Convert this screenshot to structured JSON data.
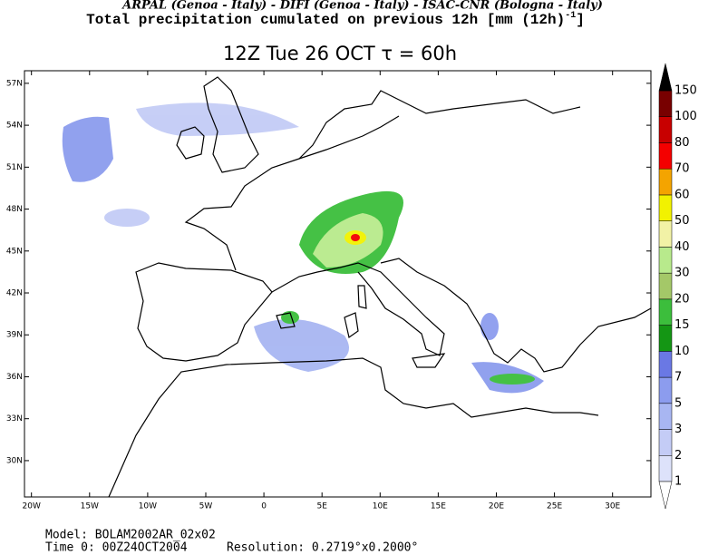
{
  "header": {
    "institutions": "ARPAL (Genoa - Italy)  -  DIFI (Genoa - Italy)  -  ISAC-CNR (Bologna - Italy)",
    "field": "Total precipitation cumulated on previous 12h [mm (12h)",
    "field_exponent": "-1",
    "field_end": "]"
  },
  "title": "12Z Tue 26 OCT  τ = 60h",
  "map": {
    "xlim": [
      -20.6,
      33.3
    ],
    "ylim": [
      27.4,
      57.9
    ],
    "xticks": [
      {
        "value": -20,
        "label": "20W"
      },
      {
        "value": -15,
        "label": "15W"
      },
      {
        "value": -10,
        "label": "10W"
      },
      {
        "value": -5,
        "label": "5W"
      },
      0,
      {
        "value": 5,
        "label": "5E"
      },
      {
        "value": 10,
        "label": "10E"
      },
      {
        "value": 15,
        "label": "15E"
      },
      {
        "value": 20,
        "label": "20E"
      },
      {
        "value": 25,
        "label": "25E"
      },
      {
        "value": 30,
        "label": "30E"
      }
    ],
    "yticks": [
      {
        "value": 30,
        "label": "30N"
      },
      {
        "value": 33,
        "label": "33N"
      },
      {
        "value": 36,
        "label": "36N"
      },
      {
        "value": 39,
        "label": "39N"
      },
      {
        "value": 42,
        "label": "42N"
      },
      {
        "value": 45,
        "label": "45N"
      },
      {
        "value": 48,
        "label": "48N"
      },
      {
        "value": 51,
        "label": "51N"
      },
      {
        "value": 54,
        "label": "54N"
      },
      {
        "value": 57,
        "label": "57N"
      }
    ]
  },
  "colorbar": {
    "levels": [
      1,
      2,
      3,
      5,
      7,
      10,
      15,
      20,
      30,
      40,
      50,
      60,
      70,
      80,
      100,
      150
    ],
    "colors": [
      "#ffffff",
      "#dde2fa",
      "#c4ccf6",
      "#a8b6f2",
      "#8c9cee",
      "#6a78e4",
      "#149614",
      "#3cbe3c",
      "#a4c868",
      "#b8ea8c",
      "#f2f2a6",
      "#f2f200",
      "#f4a400",
      "#f40000",
      "#c80000",
      "#780000",
      "#000000"
    ]
  },
  "footer": {
    "model": "Model: BOLAM2002AR_02x02",
    "time0": "Time 0: 00Z24OCT2004",
    "resolution": "Resolution: 0.2719°x0.2000°"
  }
}
